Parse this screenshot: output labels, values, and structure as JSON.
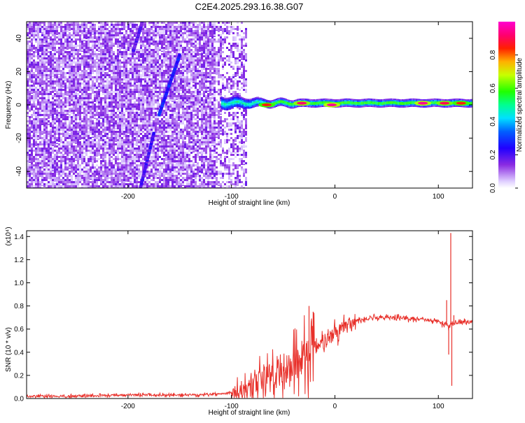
{
  "title": "C2E4.2025.293.16.38.G07",
  "chart_data": [
    {
      "type": "heatmap",
      "xlabel": "Height of straight line (km)",
      "ylabel": "Frequency (Hz)",
      "xlim": [
        -298,
        133
      ],
      "ylim": [
        -50,
        50
      ],
      "xticks": [
        -200,
        -100,
        0,
        100
      ],
      "xtick_labels": [
        "-200",
        "-100",
        "0",
        "100"
      ],
      "yticks": [
        -40,
        -20,
        0,
        20,
        40
      ],
      "ytick_labels": [
        "-40",
        "-20",
        "0",
        "20",
        "40"
      ],
      "colorbar": {
        "label": "Normalized spectral amplitude",
        "range": [
          0,
          1
        ],
        "ticks": [
          0.0,
          0.2,
          0.4,
          0.6,
          0.8
        ],
        "tick_labels": [
          "0.0",
          "0.2",
          "0.4",
          "0.6",
          "0.8"
        ],
        "colors": [
          "#d8c8f8",
          "#8a2be2",
          "#3c00ff",
          "#0000ff",
          "#00d8ff",
          "#00ff80",
          "#40ff00",
          "#e0ff00",
          "#ffb000",
          "#ff2000",
          "#ff0060",
          "#ff00c0"
        ]
      },
      "regions": [
        {
          "name": "noise",
          "x_range": [
            -298,
            -85
          ],
          "f_range": [
            -50,
            50
          ],
          "amplitude": 0.08
        },
        {
          "name": "carrier",
          "x_range": [
            -110,
            133
          ],
          "f_center": 1.5,
          "amplitude": 0.6
        }
      ],
      "streaks": [
        {
          "x": [
            -188,
            -175
          ],
          "f": [
            -50,
            -17
          ],
          "amplitude": 0.15
        },
        {
          "x": [
            -170,
            -150
          ],
          "f": [
            -6,
            30
          ],
          "amplitude": 0.2
        },
        {
          "x": [
            -195,
            -186
          ],
          "f": [
            32,
            50
          ],
          "amplitude": 0.12
        }
      ],
      "hotspots": [
        {
          "x": -66,
          "f": 0,
          "amplitude": 0.85
        },
        {
          "x": -32,
          "f": 1,
          "amplitude": 0.92
        },
        {
          "x": -3,
          "f": 0,
          "amplitude": 0.95
        },
        {
          "x": 85,
          "f": 1,
          "amplitude": 0.95
        },
        {
          "x": 106,
          "f": 1,
          "amplitude": 0.9
        },
        {
          "x": 122,
          "f": 1,
          "amplitude": 0.85
        }
      ]
    },
    {
      "type": "line",
      "xlabel": "Height of straight line (km)",
      "ylabel": "SNR (10 * v/v)",
      "multiplier_label": "(x10⁴)",
      "xlim": [
        -298,
        133
      ],
      "ylim": [
        0,
        1.45
      ],
      "xticks": [
        -200,
        -100,
        0,
        100
      ],
      "xtick_labels": [
        "-200",
        "-100",
        "0",
        "100"
      ],
      "yticks": [
        0.0,
        0.2,
        0.4,
        0.6,
        0.8,
        1.0,
        1.2,
        1.4
      ],
      "ytick_labels": [
        "0.0",
        "0.2",
        "0.4",
        "0.6",
        "0.8",
        "1.0",
        "1.2",
        "1.4"
      ],
      "color": "#e8302a",
      "series": [
        {
          "name": "SNR",
          "x": [
            -298,
            -250,
            -200,
            -150,
            -110,
            -100,
            -90,
            -80,
            -70,
            -60,
            -50,
            -40,
            -30,
            -20,
            -10,
            0,
            10,
            20,
            30,
            40,
            50,
            60,
            70,
            80,
            90,
            100,
            105,
            108,
            110,
            112,
            114,
            116,
            120,
            125,
            133
          ],
          "y": [
            0.02,
            0.02,
            0.03,
            0.03,
            0.04,
            0.05,
            0.06,
            0.1,
            0.18,
            0.24,
            0.26,
            0.3,
            0.35,
            0.42,
            0.48,
            0.56,
            0.63,
            0.67,
            0.69,
            0.7,
            0.7,
            0.7,
            0.69,
            0.69,
            0.68,
            0.66,
            0.64,
            0.66,
            0.6,
            0.64,
            0.66,
            0.65,
            0.66,
            0.66,
            0.66
          ]
        }
      ],
      "spikes": [
        {
          "x": -25,
          "y": 0.8,
          "dir": "up"
        },
        {
          "x": -21,
          "y": 0.75,
          "dir": "up"
        },
        {
          "x": 108,
          "y": 0.85,
          "dir": "up"
        },
        {
          "x": 110,
          "y": 0.38,
          "dir": "down"
        },
        {
          "x": 112,
          "y": 1.43,
          "dir": "up"
        },
        {
          "x": 113,
          "y": 0.11,
          "dir": "down"
        },
        {
          "x": 115,
          "y": 0.72,
          "dir": "up"
        }
      ]
    }
  ]
}
